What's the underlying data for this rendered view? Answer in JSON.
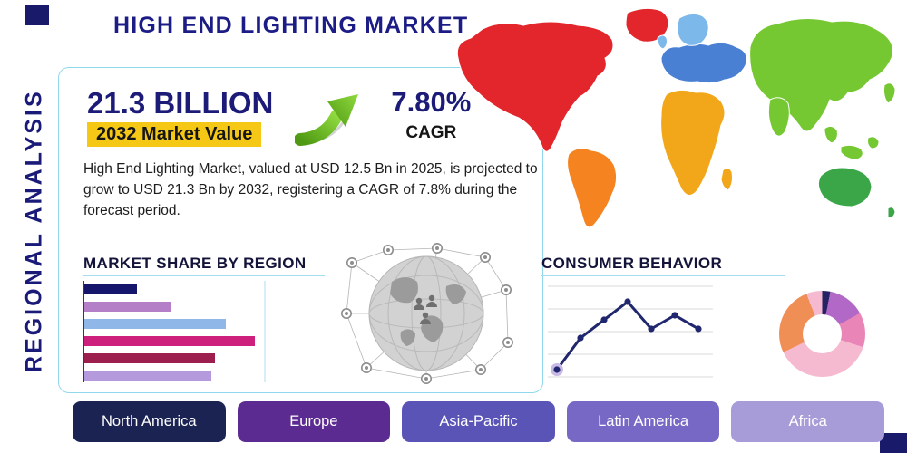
{
  "page": {
    "title": "HIGH END LIGHTING MARKET",
    "vertical_title": "REGIONAL ANALYSIS"
  },
  "stats": {
    "market_value": "21.3 BILLION",
    "market_value_label": "2032 Market Value",
    "cagr_value": "7.80%",
    "cagr_label": "CAGR",
    "description": "High End Lighting Market, valued at USD 12.5 Bn in 2025, is projected to grow to USD 21.3 Bn by 2032, registering a CAGR of 7.8% during the forecast period."
  },
  "sections": {
    "market_share_heading": "MARKET SHARE BY REGION",
    "consumer_behavior_heading": "CONSUMER BEHAVIOR"
  },
  "regions": [
    {
      "label": "North America",
      "color": "#1b2353"
    },
    {
      "label": "Europe",
      "color": "#5c2b91"
    },
    {
      "label": "Asia-Pacific",
      "color": "#5954b6"
    },
    {
      "label": "Latin America",
      "color": "#7768c5"
    },
    {
      "label": "Africa",
      "color": "#a79bd8"
    }
  ],
  "icons": {
    "growth_arrow": "curved-up-right-growth-arrow",
    "globe_network": "connected-world-globe-network"
  },
  "colors": {
    "navy": "#1a1a78",
    "accent_teal": "#90d8ec",
    "highlight_yellow": "#f6c816",
    "arrow_green": "#6ab526",
    "corner_square": "#1a1a6b"
  },
  "map": {
    "type": "world-map",
    "colors": {
      "north_america": "#e3262b",
      "greenland": "#e3262b",
      "south_america": "#f5831f",
      "europe": "#4a80d4",
      "northern_europe": "#7db8ea",
      "africa": "#f2a71b",
      "asia": "#76c832",
      "australia": "#3aa648"
    }
  },
  "chart_data": [
    {
      "type": "bar",
      "title": "Market Share by Region",
      "orientation": "horizontal",
      "note": "six bars, category labels not shown in image",
      "values": [
        29,
        48,
        78,
        94,
        72,
        70
      ],
      "unit": "percent-of-chart-width",
      "xlim": [
        0,
        100
      ],
      "colors": [
        "#15156b",
        "#b57fc8",
        "#8fb8e8",
        "#cd1f7c",
        "#9c1f4e",
        "#b49add"
      ]
    },
    {
      "type": "line",
      "title": "Consumer Behavior",
      "x": [
        1,
        2,
        3,
        4,
        5,
        6,
        7
      ],
      "values": [
        10,
        45,
        65,
        85,
        55,
        70,
        55
      ],
      "ylim": [
        0,
        100
      ],
      "grid": true,
      "color": "#20276e",
      "first_point_halo": "#c9b9e6"
    },
    {
      "type": "pie",
      "title": "Regional distribution donut",
      "donut": true,
      "slices": [
        {
          "value": 3,
          "color": "#252364"
        },
        {
          "value": 14,
          "color": "#b168c6"
        },
        {
          "value": 13,
          "color": "#ea85b8"
        },
        {
          "value": 38,
          "color": "#f5bad0"
        },
        {
          "value": 26,
          "color": "#ef8e55"
        },
        {
          "value": 6,
          "color": "#f5bad0"
        }
      ]
    }
  ]
}
